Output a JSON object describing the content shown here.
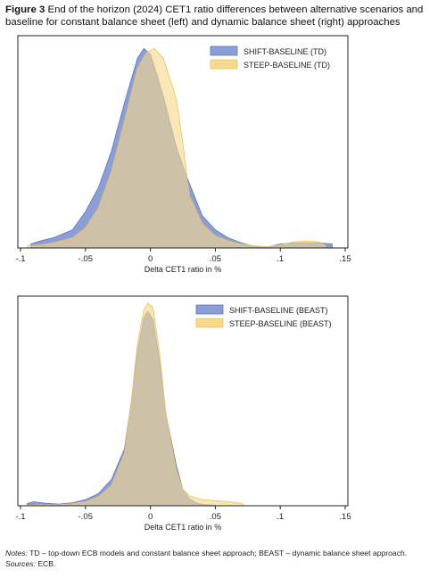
{
  "figure": {
    "label": "Figure 3",
    "caption": "End of the horizon (2024) CET1 ratio differences between alternative scenarios and baseline for constant balance sheet (left) and dynamic balance sheet (right) approaches"
  },
  "notes": {
    "notes_label": "Notes:",
    "notes_text": "TD – top-down ECB models and constant balance sheet approach; BEAST – dynamic balance sheet approach.",
    "sources_label": "Sources:",
    "sources_text": "ECB."
  },
  "colors": {
    "shift_fill": "#8b9fd6",
    "shift_stroke": "#5a74c4",
    "steep_fill": "#f6d98a",
    "steep_stroke": "#e8c45e",
    "frame": "#222222"
  },
  "chart_data": [
    {
      "type": "area",
      "title": "",
      "xlabel": "Delta CET1 ratio in %",
      "ylabel": "",
      "xlim": [
        -0.1,
        0.15
      ],
      "xticks": [
        "-.1",
        "-.05",
        "0",
        ".05",
        ".1",
        ".15"
      ],
      "xtick_values": [
        -0.1,
        -0.05,
        0,
        0.05,
        0.1,
        0.15
      ],
      "ylim": [
        0,
        1
      ],
      "grid": false,
      "legend": "top-right",
      "series": [
        {
          "name": "SHIFT-BASELINE (TD)",
          "x": [
            -0.092,
            -0.085,
            -0.075,
            -0.06,
            -0.05,
            -0.04,
            -0.03,
            -0.02,
            -0.01,
            -0.005,
            0,
            0.005,
            0.01,
            0.02,
            0.03,
            0.04,
            0.05,
            0.06,
            0.07,
            0.08,
            0.085,
            0.09,
            0.1,
            0.11,
            0.12,
            0.13,
            0.14
          ],
          "y": [
            0.02,
            0.035,
            0.05,
            0.09,
            0.18,
            0.3,
            0.48,
            0.72,
            0.94,
            0.99,
            0.96,
            0.86,
            0.75,
            0.5,
            0.32,
            0.16,
            0.09,
            0.05,
            0.025,
            0.008,
            0.003,
            0.004,
            0.02,
            0.025,
            0.025,
            0.025,
            0.02
          ]
        },
        {
          "name": "STEEP-BASELINE (TD)",
          "x": [
            -0.095,
            -0.085,
            -0.075,
            -0.06,
            -0.05,
            -0.04,
            -0.03,
            -0.02,
            -0.01,
            -0.003,
            0.003,
            0.01,
            0.02,
            0.025,
            0.03,
            0.04,
            0.05,
            0.06,
            0.07,
            0.08,
            0.09,
            0.1,
            0.11,
            0.12,
            0.13,
            0.135
          ],
          "y": [
            0.01,
            0.015,
            0.025,
            0.05,
            0.1,
            0.2,
            0.38,
            0.63,
            0.89,
            0.97,
            0.99,
            0.94,
            0.74,
            0.52,
            0.26,
            0.12,
            0.06,
            0.035,
            0.02,
            0.01,
            0.006,
            0.015,
            0.03,
            0.035,
            0.03,
            0.012
          ]
        }
      ]
    },
    {
      "type": "area",
      "title": "",
      "xlabel": "Delta CET1 ratio in %",
      "ylabel": "",
      "xlim": [
        -0.1,
        0.15
      ],
      "xticks": [
        "-.1",
        "-.05",
        "0",
        ".05",
        ".1",
        ".15"
      ],
      "xtick_values": [
        -0.1,
        -0.05,
        0,
        0.05,
        0.1,
        0.15
      ],
      "ylim": [
        0,
        1
      ],
      "grid": false,
      "legend": "top-right",
      "series": [
        {
          "name": "SHIFT-BASELINE (BEAST)",
          "x": [
            -0.095,
            -0.09,
            -0.08,
            -0.07,
            -0.06,
            -0.05,
            -0.04,
            -0.03,
            -0.02,
            -0.015,
            -0.01,
            -0.005,
            -0.002,
            0.002,
            0.007,
            0.012,
            0.02,
            0.025,
            0.03,
            0.035,
            0.04,
            0.05
          ],
          "y": [
            0.01,
            0.02,
            0.012,
            0.008,
            0.015,
            0.03,
            0.06,
            0.13,
            0.28,
            0.5,
            0.76,
            0.93,
            0.96,
            0.92,
            0.72,
            0.45,
            0.2,
            0.08,
            0.035,
            0.015,
            0.006,
            0.002
          ]
        },
        {
          "name": "STEEP-BASELINE (BEAST)",
          "x": [
            -0.095,
            -0.08,
            -0.07,
            -0.06,
            -0.05,
            -0.04,
            -0.03,
            -0.02,
            -0.015,
            -0.01,
            -0.005,
            -0.002,
            0.002,
            0.007,
            0.012,
            0.02,
            0.025,
            0.03,
            0.04,
            0.05,
            0.06,
            0.07,
            0.072
          ],
          "y": [
            0.003,
            0.005,
            0.006,
            0.01,
            0.02,
            0.045,
            0.1,
            0.26,
            0.5,
            0.8,
            0.97,
            1.0,
            0.98,
            0.76,
            0.45,
            0.18,
            0.08,
            0.05,
            0.03,
            0.025,
            0.02,
            0.012,
            0.003
          ]
        }
      ]
    }
  ]
}
